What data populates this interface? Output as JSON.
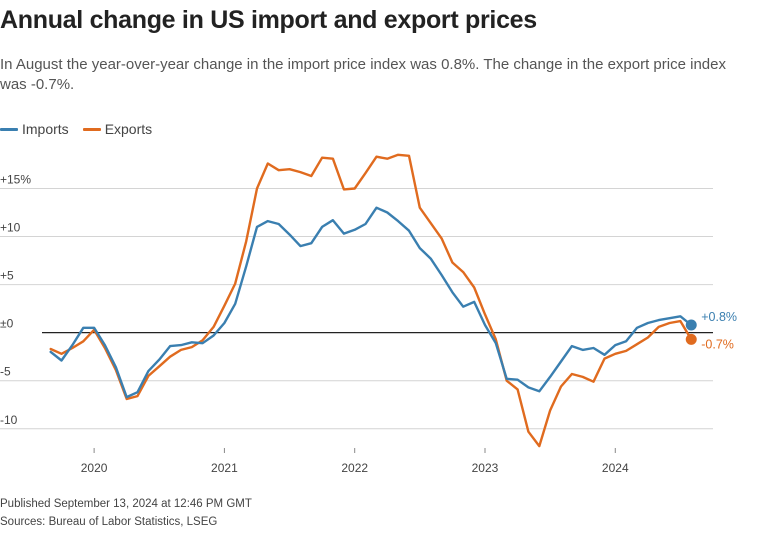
{
  "header": {
    "title": "Annual change in US import and export prices",
    "subtitle": "In August the year-over-year change in the import price index was 0.8%. The change in the export price index was -0.7%."
  },
  "legend": [
    {
      "label": "Imports",
      "color": "#3a7fb0"
    },
    {
      "label": "Exports",
      "color": "#e06b1f"
    }
  ],
  "footer": {
    "published": "Published September 13, 2024 at 12:46 PM GMT",
    "sources": "Sources: Bureau of Labor Statistics, LSEG"
  },
  "chart_data": {
    "type": "line",
    "title": "Annual change in US import and export prices",
    "xlabel": "",
    "ylabel": "",
    "ylim": [
      -12,
      19
    ],
    "xlim": [
      2019.6,
      2024.75
    ],
    "grid": true,
    "legend_position": "top-left",
    "y_ticks": [
      15,
      10,
      5,
      0,
      -5,
      -10
    ],
    "y_tick_labels": [
      "+15%",
      "+10",
      "+5",
      "±0",
      "-5",
      "-10"
    ],
    "x_ticks": [
      2020,
      2021,
      2022,
      2023,
      2024
    ],
    "x_tick_labels": [
      "2020",
      "2021",
      "2022",
      "2023",
      "2024"
    ],
    "series": [
      {
        "name": "Imports",
        "color": "#3a7fb0",
        "end_label": "+0.8%",
        "points": [
          [
            2019.667,
            -2.0
          ],
          [
            2019.75,
            -2.9
          ],
          [
            2019.833,
            -1.3
          ],
          [
            2019.917,
            0.5
          ],
          [
            2020.0,
            0.5
          ],
          [
            2020.083,
            -1.3
          ],
          [
            2020.167,
            -3.6
          ],
          [
            2020.25,
            -6.7
          ],
          [
            2020.333,
            -6.2
          ],
          [
            2020.417,
            -4.0
          ],
          [
            2020.5,
            -2.8
          ],
          [
            2020.583,
            -1.4
          ],
          [
            2020.667,
            -1.3
          ],
          [
            2020.75,
            -1.0
          ],
          [
            2020.833,
            -1.1
          ],
          [
            2020.917,
            -0.3
          ],
          [
            2021.0,
            1.0
          ],
          [
            2021.083,
            3.0
          ],
          [
            2021.167,
            6.9
          ],
          [
            2021.25,
            11.0
          ],
          [
            2021.333,
            11.6
          ],
          [
            2021.417,
            11.3
          ],
          [
            2021.5,
            10.2
          ],
          [
            2021.583,
            9.0
          ],
          [
            2021.667,
            9.3
          ],
          [
            2021.75,
            11.0
          ],
          [
            2021.833,
            11.7
          ],
          [
            2021.917,
            10.3
          ],
          [
            2022.0,
            10.7
          ],
          [
            2022.083,
            11.3
          ],
          [
            2022.167,
            13.0
          ],
          [
            2022.25,
            12.5
          ],
          [
            2022.333,
            11.6
          ],
          [
            2022.417,
            10.6
          ],
          [
            2022.5,
            8.8
          ],
          [
            2022.583,
            7.7
          ],
          [
            2022.667,
            6.0
          ],
          [
            2022.75,
            4.2
          ],
          [
            2022.833,
            2.7
          ],
          [
            2022.917,
            3.2
          ],
          [
            2023.0,
            0.8
          ],
          [
            2023.083,
            -1.1
          ],
          [
            2023.167,
            -4.8
          ],
          [
            2023.25,
            -4.9
          ],
          [
            2023.333,
            -5.7
          ],
          [
            2023.417,
            -6.1
          ],
          [
            2023.5,
            -4.6
          ],
          [
            2023.583,
            -3.0
          ],
          [
            2023.667,
            -1.4
          ],
          [
            2023.75,
            -1.8
          ],
          [
            2023.833,
            -1.6
          ],
          [
            2023.917,
            -2.3
          ],
          [
            2024.0,
            -1.3
          ],
          [
            2024.083,
            -0.9
          ],
          [
            2024.167,
            0.5
          ],
          [
            2024.25,
            1.0
          ],
          [
            2024.333,
            1.3
          ],
          [
            2024.417,
            1.5
          ],
          [
            2024.5,
            1.7
          ],
          [
            2024.583,
            0.8
          ]
        ]
      },
      {
        "name": "Exports",
        "color": "#e06b1f",
        "end_label": "-0.7%",
        "points": [
          [
            2019.667,
            -1.7
          ],
          [
            2019.75,
            -2.2
          ],
          [
            2019.833,
            -1.6
          ],
          [
            2019.917,
            -0.9
          ],
          [
            2020.0,
            0.3
          ],
          [
            2020.083,
            -1.6
          ],
          [
            2020.167,
            -3.9
          ],
          [
            2020.25,
            -6.9
          ],
          [
            2020.333,
            -6.6
          ],
          [
            2020.417,
            -4.5
          ],
          [
            2020.5,
            -3.5
          ],
          [
            2020.583,
            -2.5
          ],
          [
            2020.667,
            -1.8
          ],
          [
            2020.75,
            -1.5
          ],
          [
            2020.833,
            -0.8
          ],
          [
            2020.917,
            0.6
          ],
          [
            2021.0,
            2.8
          ],
          [
            2021.083,
            5.1
          ],
          [
            2021.167,
            9.5
          ],
          [
            2021.25,
            15.0
          ],
          [
            2021.333,
            17.6
          ],
          [
            2021.417,
            16.9
          ],
          [
            2021.5,
            17.0
          ],
          [
            2021.583,
            16.7
          ],
          [
            2021.667,
            16.3
          ],
          [
            2021.75,
            18.2
          ],
          [
            2021.833,
            18.1
          ],
          [
            2021.917,
            14.9
          ],
          [
            2022.0,
            15.0
          ],
          [
            2022.083,
            16.6
          ],
          [
            2022.167,
            18.3
          ],
          [
            2022.25,
            18.1
          ],
          [
            2022.333,
            18.5
          ],
          [
            2022.417,
            18.4
          ],
          [
            2022.5,
            13.0
          ],
          [
            2022.583,
            11.4
          ],
          [
            2022.667,
            9.8
          ],
          [
            2022.75,
            7.3
          ],
          [
            2022.833,
            6.3
          ],
          [
            2022.917,
            4.7
          ],
          [
            2023.0,
            1.9
          ],
          [
            2023.083,
            -0.7
          ],
          [
            2023.167,
            -5.0
          ],
          [
            2023.25,
            -5.9
          ],
          [
            2023.333,
            -10.3
          ],
          [
            2023.417,
            -11.8
          ],
          [
            2023.5,
            -8.1
          ],
          [
            2023.583,
            -5.6
          ],
          [
            2023.667,
            -4.3
          ],
          [
            2023.75,
            -4.6
          ],
          [
            2023.833,
            -5.1
          ],
          [
            2023.917,
            -2.7
          ],
          [
            2024.0,
            -2.2
          ],
          [
            2024.083,
            -1.9
          ],
          [
            2024.167,
            -1.2
          ],
          [
            2024.25,
            -0.5
          ],
          [
            2024.333,
            0.6
          ],
          [
            2024.417,
            1.0
          ],
          [
            2024.5,
            1.2
          ],
          [
            2024.583,
            -0.7
          ]
        ]
      }
    ]
  }
}
